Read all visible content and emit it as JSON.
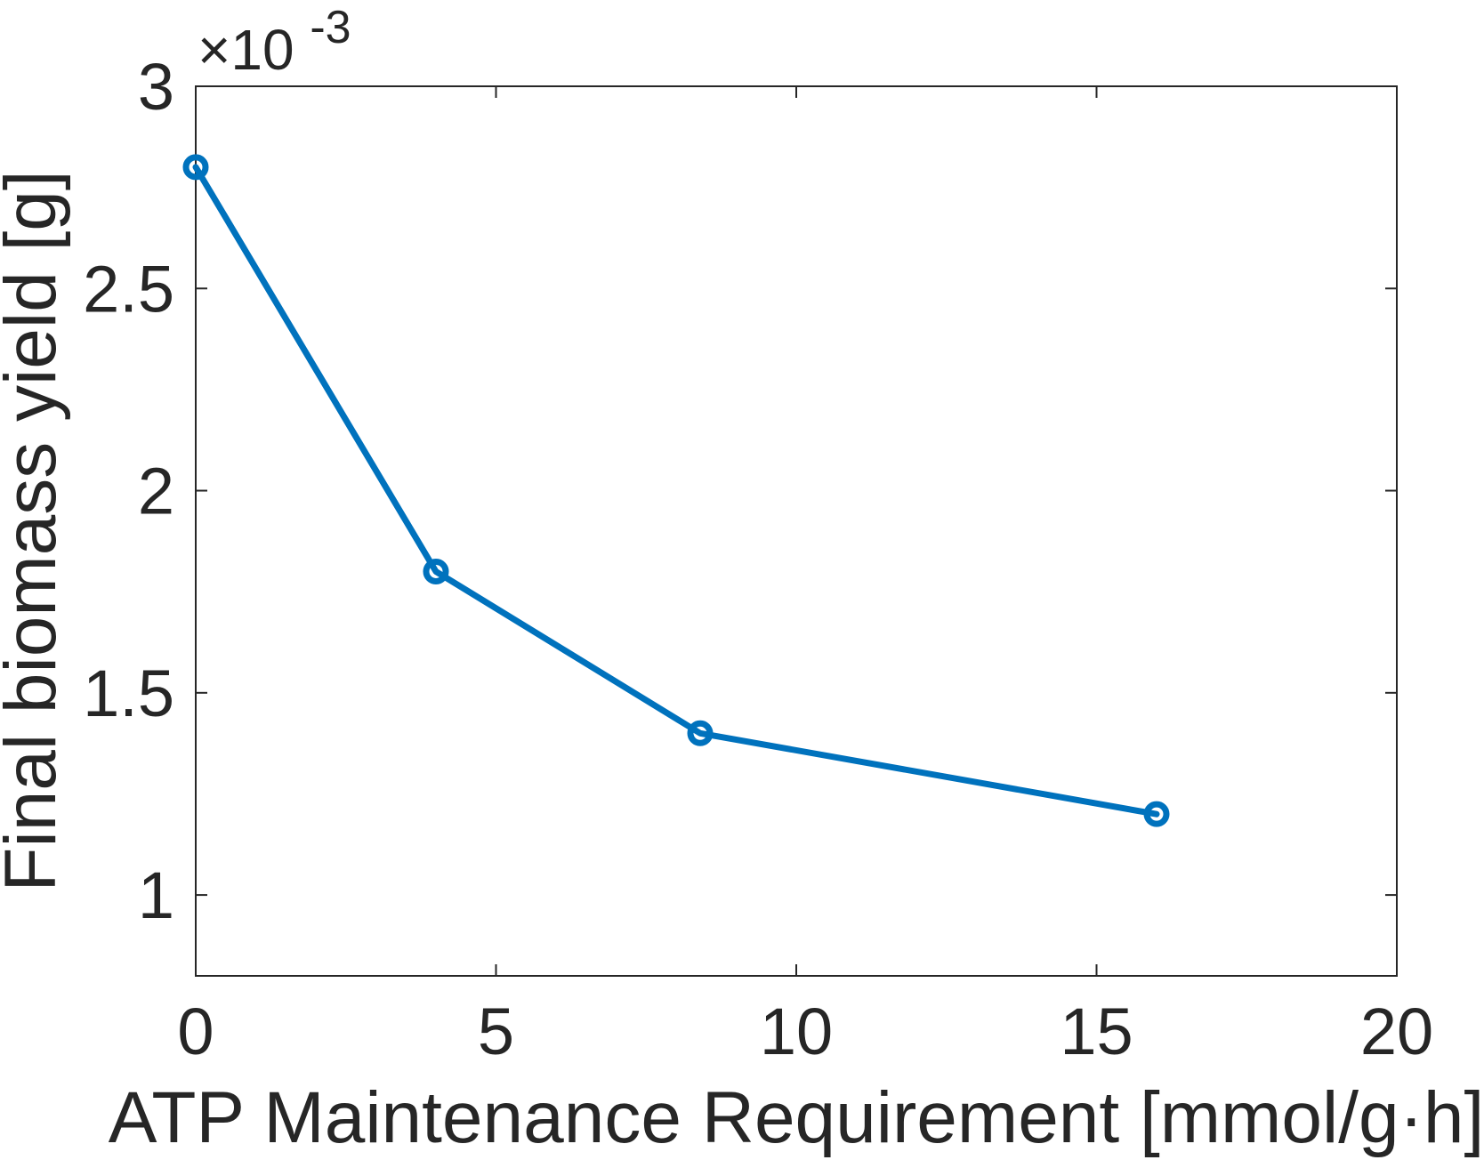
{
  "chart_data": {
    "type": "line",
    "title": "",
    "xlabel": "ATP Maintenance Requirement [mmol/g·h]",
    "ylabel": "Final biomass yield [g]",
    "y_exponent_label": {
      "base": "×10",
      "power": "-3"
    },
    "xlim": [
      0,
      20
    ],
    "ylim": [
      0.8,
      3.0
    ],
    "x_ticks": [
      0,
      5,
      10,
      15,
      20
    ],
    "x_tick_labels": [
      "0",
      "5",
      "10",
      "15",
      "20"
    ],
    "y_ticks": [
      1.0,
      1.5,
      2.0,
      2.5,
      3.0
    ],
    "y_tick_labels": [
      "1",
      "1.5",
      "2",
      "2.5",
      "3"
    ],
    "y_scale_factor": 0.001,
    "grid": false,
    "box": true,
    "series": [
      {
        "color": "#0072BD",
        "marker": "circle",
        "x": [
          0,
          4,
          8.4,
          16
        ],
        "y": [
          2.8,
          1.8,
          1.4,
          1.2
        ]
      }
    ]
  }
}
